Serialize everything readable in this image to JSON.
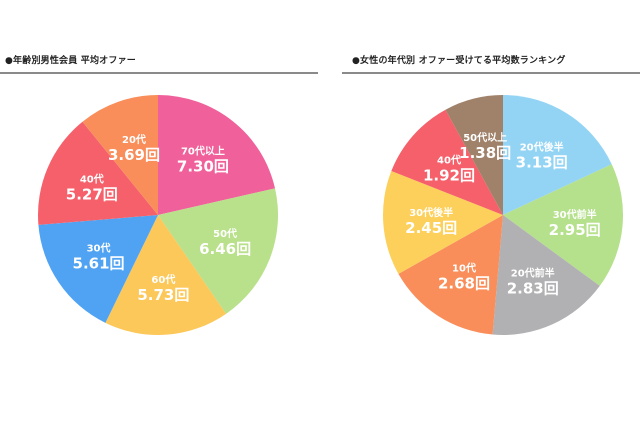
{
  "left": {
    "title": "●年齢別男性会員 平均オファー"
  },
  "right": {
    "title": "●女性の年代別 オファー受けてる平均数ランキング"
  },
  "chart_data": [
    {
      "type": "pie",
      "title": "年齢別男性会員 平均オファー",
      "unit": "回",
      "categories": [
        "70代以上",
        "50代",
        "60代",
        "30代",
        "40代",
        "20代"
      ],
      "values": [
        7.3,
        6.46,
        5.73,
        5.61,
        5.27,
        3.69
      ],
      "colors": [
        "#F0609A",
        "#B9E08A",
        "#FCC85A",
        "#4FA3F2",
        "#F5606A",
        "#F98E5B"
      ],
      "labels": [
        "7.30回",
        "6.46回",
        "5.73回",
        "5.61回",
        "5.27回",
        "3.69回"
      ],
      "start_angle": "12 o'clock, clockwise"
    },
    {
      "type": "pie",
      "title": "女性の年代別 オファー受けてる平均数ランキング",
      "unit": "回",
      "categories": [
        "20代後半",
        "30代前半",
        "20代前半",
        "10代",
        "30代後半",
        "40代",
        "50代以上"
      ],
      "values": [
        3.13,
        2.95,
        2.83,
        2.68,
        2.45,
        1.92,
        1.38
      ],
      "colors": [
        "#93D4F5",
        "#B5E08C",
        "#B1B1B3",
        "#F98E5B",
        "#FCD05A",
        "#F5606A",
        "#A0826A"
      ],
      "labels": [
        "3.13回",
        "2.95回",
        "2.83回",
        "2.68回",
        "2.45回",
        "1.92回",
        "1.38回"
      ],
      "start_angle": "12 o'clock, clockwise"
    }
  ]
}
